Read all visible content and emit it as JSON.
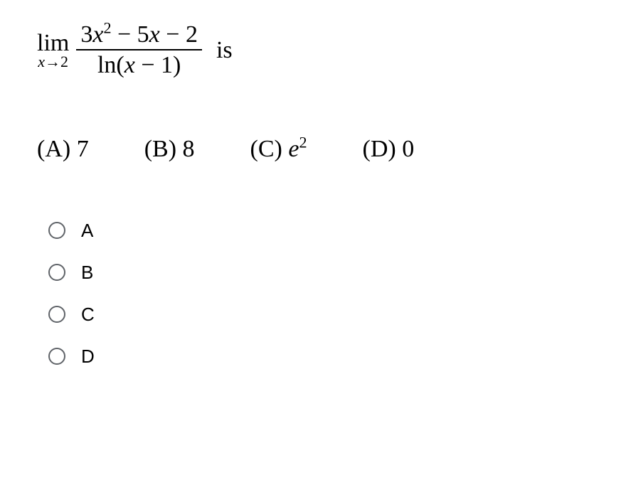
{
  "question": {
    "limit_label": "lim",
    "limit_sub_var": "x",
    "limit_sub_arrow": "→",
    "limit_sub_val": "2",
    "numerator_html": "3x² − 5x − 2",
    "num_coeff1": "3",
    "num_var1": "x",
    "num_pow1": "2",
    "num_op1": " − 5",
    "num_var2": "x",
    "num_op2": " − 2",
    "den_fn": "ln(",
    "den_var": "x",
    "den_rest": " − 1)",
    "trail_text": "is"
  },
  "choices": {
    "A": {
      "label": "(A)",
      "value": " 7"
    },
    "B": {
      "label": "(B)",
      "value": " 8"
    },
    "C": {
      "label": "(C)",
      "prefix": " ",
      "base": "e",
      "exp": "2"
    },
    "D": {
      "label": "(D)",
      "value": " 0"
    }
  },
  "options": {
    "a": "A",
    "b": "B",
    "c": "C",
    "d": "D"
  },
  "style": {
    "text_color": "#000000",
    "bg_color": "#ffffff",
    "radio_border": "#5f6368",
    "math_fontsize": 34,
    "option_fontsize": 26
  }
}
